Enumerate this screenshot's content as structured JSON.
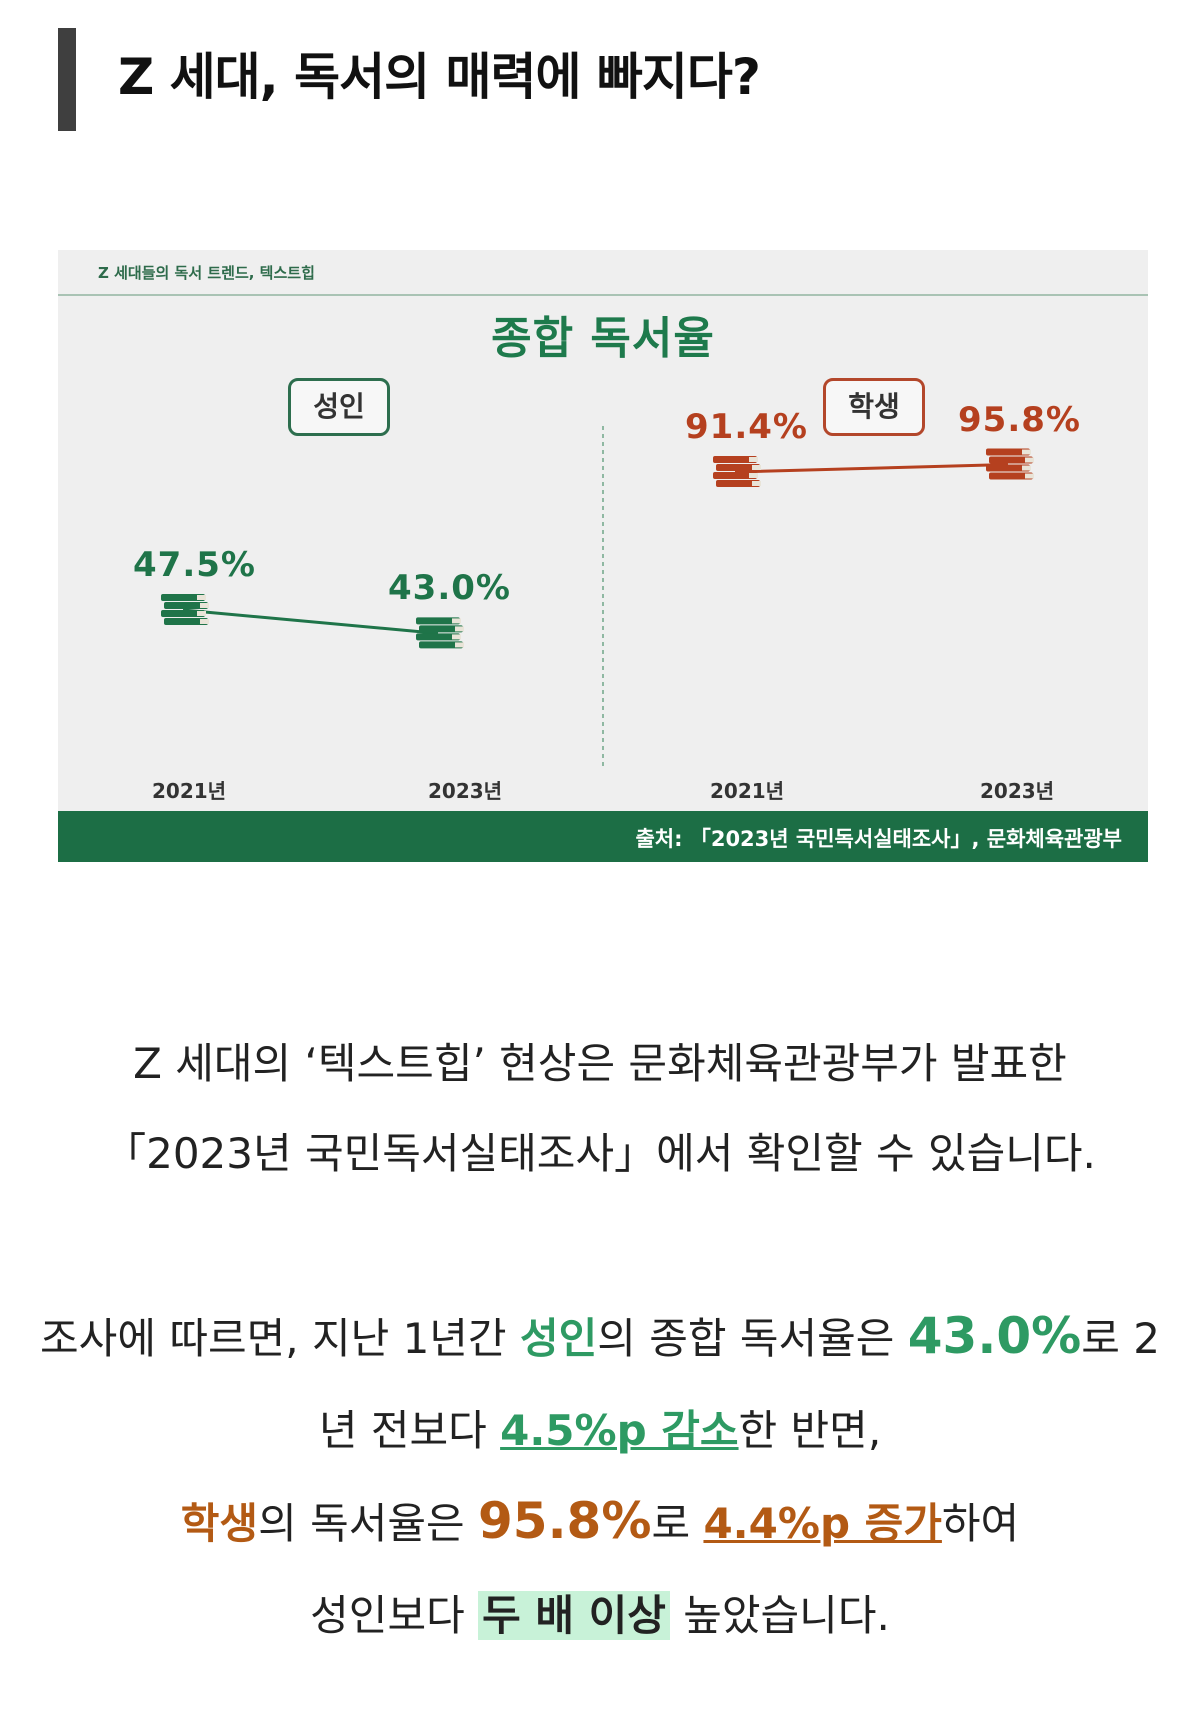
{
  "page": {
    "title": "Z 세대, 독서의 매력에 빠지다?"
  },
  "infographic": {
    "header": "Z 세대들의 독서 트렌드, 텍스트힙",
    "heading": "종합 독서율",
    "source": "출처: 「2023년 국민독서실태조사」, 문화체육관광부",
    "colors": {
      "adult": "#1f7449",
      "student": "#b5401f",
      "footer": "#1c6e45"
    }
  },
  "chart_data": [
    {
      "type": "line",
      "title": "성인",
      "categories": [
        "2021년",
        "2023년"
      ],
      "values": [
        47.5,
        43.0
      ],
      "value_labels": [
        "47.5%",
        "43.0%"
      ]
    },
    {
      "type": "line",
      "title": "학생",
      "categories": [
        "2021년",
        "2023년"
      ],
      "values": [
        91.4,
        95.8
      ],
      "value_labels": [
        "91.4%",
        "95.8%"
      ]
    }
  ],
  "body": {
    "p1": "Z 세대의 ‘텍스트힙’ 현상은 문화체육관광부가 발표한",
    "p2": "「2023년 국민독서실태조사」에서 확인할 수 있습니다.",
    "p3": {
      "a": "조사에 따르면, 지난 1년간 ",
      "adult": "성인",
      "b": "의 종합 독서율은 ",
      "adult_rate": "43.0%",
      "c": "로 2"
    },
    "p4": {
      "a": "년 전보다 ",
      "change": "4.5%p 감소",
      "b": "한 반면,"
    },
    "p5": {
      "student": "학생",
      "a": "의 독서율은 ",
      "student_rate": "95.8%",
      "b": "로 ",
      "change": "4.4%p 증가",
      "c": "하여"
    },
    "p6": {
      "a": "성인보다 ",
      "highlight": "두 배 이상",
      "b": " 높았습니다."
    }
  }
}
